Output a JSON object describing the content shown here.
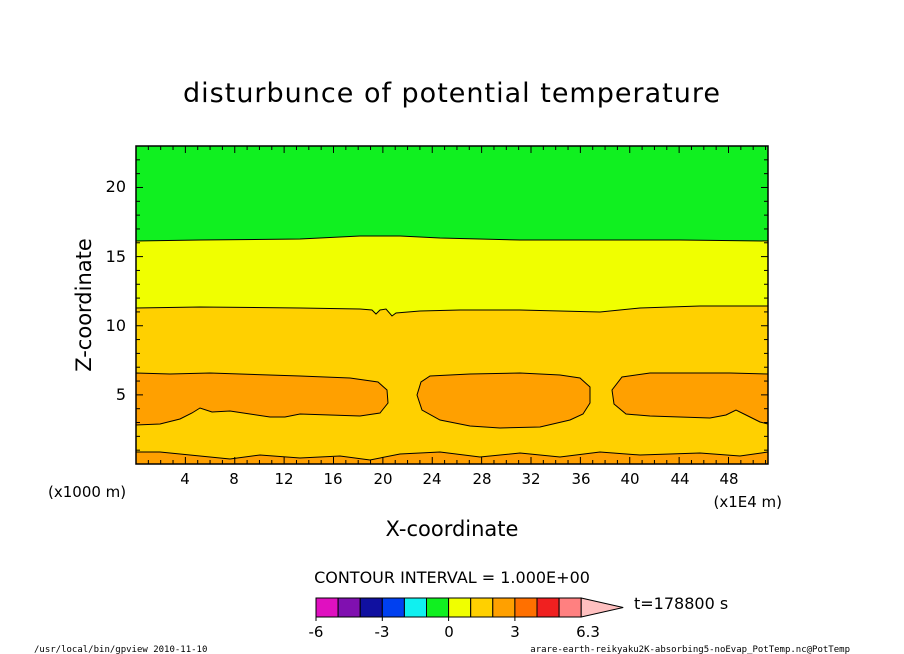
{
  "chart_data": {
    "type": "contour",
    "title": "disturbunce of potential temperature",
    "xlabel": "X-coordinate",
    "ylabel": "Z-coordinate",
    "x_unit_note": "(x1E4 m)",
    "y_unit_note": "(x1000 m)",
    "xlim": [
      0,
      51.2
    ],
    "ylim": [
      0,
      23
    ],
    "x_ticks": [
      "4",
      "8",
      "12",
      "16",
      "20",
      "24",
      "28",
      "32",
      "36",
      "40",
      "44",
      "48"
    ],
    "y_ticks": [
      "5",
      "10",
      "15",
      "20"
    ],
    "contour_interval_text": "CONTOUR INTERVAL = 1.000E+00",
    "time_label": "t=178800 s",
    "colorbar_ticks": [
      "-6",
      "-3",
      "0",
      "3",
      "6.3"
    ],
    "colorbar_colors": [
      "#e010c0",
      "#8010b0",
      "#1010a0",
      "#0040f0",
      "#10f0f0",
      "#10f020",
      "#f0ff00",
      "#ffd000",
      "#ffa000",
      "#ff7000",
      "#f02020",
      "#ff8080",
      "#ffc0c0"
    ],
    "field_colors": {
      "band_0_1": "#ffa000",
      "band_1_2": "#ffd000",
      "band_2_3": "#f0ff00",
      "band_3_4": "#10f020"
    },
    "levels": [
      {
        "value": 0,
        "z_approx": 11.1
      },
      {
        "value": -1,
        "z_approx": 16.3
      },
      {
        "value": 1,
        "z_approx": 2.7
      },
      {
        "value": 1,
        "z_approx": 6.5
      },
      {
        "value": 1,
        "z_approx": 0.8
      }
    ]
  },
  "footer": {
    "left": "/usr/local/bin/gpview  2010-11-10",
    "right": "arare-earth-reikyaku2K-absorbing5-noEvap_PotTemp.nc@PotTemp"
  }
}
